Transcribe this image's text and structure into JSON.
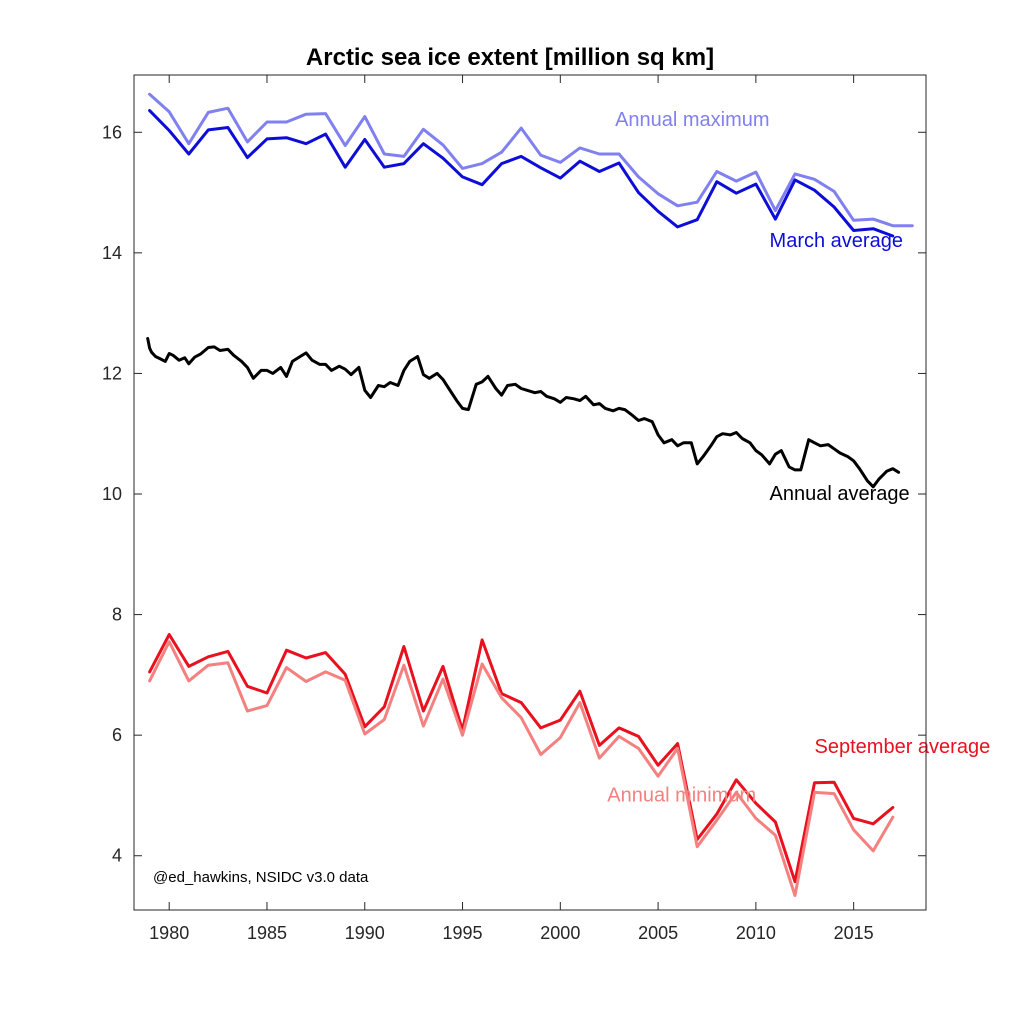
{
  "chart_data": {
    "type": "line",
    "title": "Arctic sea ice extent [million sq km]",
    "xlabel": "",
    "ylabel": "",
    "xlim": [
      1978.2,
      2018.7
    ],
    "ylim": [
      3.1,
      16.95
    ],
    "xticks": [
      1980,
      1985,
      1990,
      1995,
      2000,
      2005,
      2010,
      2015
    ],
    "yticks": [
      4,
      6,
      8,
      10,
      12,
      14,
      16
    ],
    "grid": false,
    "credit": "@ed_hawkins, NSIDC v3.0 data",
    "series": [
      {
        "name": "Annual maximum",
        "color": "#8080f0",
        "x": [
          1979,
          1980,
          1981,
          1982,
          1983,
          1984,
          1985,
          1986,
          1987,
          1988,
          1989,
          1990,
          1991,
          1992,
          1993,
          1994,
          1995,
          1996,
          1997,
          1998,
          1999,
          2000,
          2001,
          2002,
          2003,
          2004,
          2005,
          2006,
          2007,
          2008,
          2009,
          2010,
          2011,
          2012,
          2013,
          2014,
          2015,
          2016,
          2017,
          2018
        ],
        "values": [
          16.63,
          16.34,
          15.81,
          16.33,
          16.4,
          15.84,
          16.17,
          16.17,
          16.3,
          16.31,
          15.78,
          16.26,
          15.64,
          15.6,
          16.05,
          15.79,
          15.4,
          15.48,
          15.67,
          16.07,
          15.62,
          15.5,
          15.74,
          15.64,
          15.64,
          15.26,
          14.98,
          14.78,
          14.84,
          15.35,
          15.19,
          15.34,
          14.7,
          15.31,
          15.22,
          15.02,
          14.54,
          14.56,
          14.45,
          14.45
        ]
      },
      {
        "name": "March average",
        "color": "#0d0dd8",
        "x": [
          1979,
          1980,
          1981,
          1982,
          1983,
          1984,
          1985,
          1986,
          1987,
          1988,
          1989,
          1990,
          1991,
          1992,
          1993,
          1994,
          1995,
          1996,
          1997,
          1998,
          1999,
          2000,
          2001,
          2002,
          2003,
          2004,
          2005,
          2006,
          2007,
          2008,
          2009,
          2010,
          2011,
          2012,
          2013,
          2014,
          2015,
          2016,
          2017
        ],
        "values": [
          16.36,
          16.03,
          15.64,
          16.04,
          16.08,
          15.58,
          15.89,
          15.91,
          15.81,
          15.97,
          15.42,
          15.88,
          15.42,
          15.48,
          15.81,
          15.57,
          15.26,
          15.13,
          15.48,
          15.6,
          15.41,
          15.24,
          15.52,
          15.35,
          15.49,
          15.0,
          14.69,
          14.43,
          14.55,
          15.18,
          14.99,
          15.14,
          14.56,
          15.21,
          15.04,
          14.76,
          14.37,
          14.4,
          14.28
        ]
      },
      {
        "name": "Annual average",
        "color": "#000000",
        "x": [
          1978.9,
          1979,
          1979.1,
          1979.3,
          1979.5,
          1979.8,
          1980,
          1980.2,
          1980.5,
          1980.8,
          1981,
          1981.3,
          1981.6,
          1982,
          1982.3,
          1982.6,
          1983,
          1983.3,
          1983.7,
          1984,
          1984.3,
          1984.7,
          1985,
          1985.3,
          1985.7,
          1986,
          1986.3,
          1986.7,
          1987,
          1987.3,
          1987.7,
          1988,
          1988.3,
          1988.7,
          1989,
          1989.3,
          1989.7,
          1990,
          1990.3,
          1990.7,
          1991,
          1991.3,
          1991.7,
          1992,
          1992.3,
          1992.7,
          1993,
          1993.3,
          1993.7,
          1994,
          1994.3,
          1994.7,
          1995,
          1995.3,
          1995.7,
          1996,
          1996.3,
          1996.7,
          1997,
          1997.3,
          1997.7,
          1998,
          1998.3,
          1998.7,
          1999,
          1999.3,
          1999.7,
          2000,
          2000.3,
          2000.7,
          2001,
          2001.3,
          2001.7,
          2002,
          2002.3,
          2002.7,
          2003,
          2003.3,
          2003.7,
          2004,
          2004.3,
          2004.7,
          2005,
          2005.3,
          2005.7,
          2006,
          2006.3,
          2006.7,
          2007,
          2007.3,
          2007.7,
          2008,
          2008.3,
          2008.7,
          2009,
          2009.3,
          2009.7,
          2010,
          2010.3,
          2010.7,
          2011,
          2011.3,
          2011.7,
          2012,
          2012.3,
          2012.7,
          2013,
          2013.3,
          2013.7,
          2014,
          2014.3,
          2014.7,
          2015,
          2015.3,
          2015.7,
          2016,
          2016.3,
          2016.7,
          2017,
          2017.3
        ],
        "values": [
          12.58,
          12.42,
          12.35,
          12.28,
          12.25,
          12.2,
          12.33,
          12.3,
          12.22,
          12.26,
          12.16,
          12.27,
          12.32,
          12.43,
          12.44,
          12.38,
          12.4,
          12.3,
          12.2,
          12.1,
          11.92,
          12.05,
          12.05,
          12.0,
          12.1,
          11.95,
          12.2,
          12.28,
          12.34,
          12.22,
          12.15,
          12.15,
          12.05,
          12.12,
          12.07,
          11.98,
          12.1,
          11.72,
          11.6,
          11.8,
          11.78,
          11.85,
          11.8,
          12.05,
          12.2,
          12.28,
          11.98,
          11.92,
          12.0,
          11.9,
          11.75,
          11.55,
          11.42,
          11.4,
          11.82,
          11.86,
          11.95,
          11.75,
          11.64,
          11.8,
          11.82,
          11.75,
          11.72,
          11.68,
          11.7,
          11.62,
          11.58,
          11.52,
          11.6,
          11.58,
          11.55,
          11.62,
          11.48,
          11.5,
          11.42,
          11.38,
          11.42,
          11.4,
          11.3,
          11.22,
          11.25,
          11.2,
          10.98,
          10.85,
          10.9,
          10.8,
          10.85,
          10.85,
          10.5,
          10.62,
          10.8,
          10.95,
          11.0,
          10.98,
          11.02,
          10.92,
          10.85,
          10.72,
          10.65,
          10.5,
          10.66,
          10.72,
          10.45,
          10.4,
          10.4,
          10.9,
          10.85,
          10.8,
          10.82,
          10.75,
          10.68,
          10.62,
          10.55,
          10.42,
          10.22,
          10.12,
          10.25,
          10.38,
          10.42,
          10.36
        ]
      },
      {
        "name": "September average",
        "color": "#e8111d",
        "x": [
          1979,
          1980,
          1981,
          1982,
          1983,
          1984,
          1985,
          1986,
          1987,
          1988,
          1989,
          1990,
          1991,
          1992,
          1993,
          1994,
          1995,
          1996,
          1997,
          1998,
          1999,
          2000,
          2001,
          2002,
          2003,
          2004,
          2005,
          2006,
          2007,
          2008,
          2009,
          2010,
          2011,
          2012,
          2013,
          2014,
          2015,
          2016,
          2017
        ],
        "values": [
          7.05,
          7.67,
          7.14,
          7.3,
          7.39,
          6.81,
          6.7,
          7.41,
          7.28,
          7.37,
          7.01,
          6.14,
          6.47,
          7.47,
          6.4,
          7.14,
          6.08,
          7.58,
          6.69,
          6.54,
          6.12,
          6.25,
          6.73,
          5.83,
          6.12,
          5.98,
          5.5,
          5.86,
          4.27,
          4.69,
          5.26,
          4.87,
          4.56,
          3.57,
          5.21,
          5.22,
          4.62,
          4.53,
          4.8
        ]
      },
      {
        "name": "Annual minimum",
        "color": "#f58080",
        "x": [
          1979,
          1980,
          1981,
          1982,
          1983,
          1984,
          1985,
          1986,
          1987,
          1988,
          1989,
          1990,
          1991,
          1992,
          1993,
          1994,
          1995,
          1996,
          1997,
          1998,
          1999,
          2000,
          2001,
          2002,
          2003,
          2004,
          2005,
          2006,
          2007,
          2008,
          2009,
          2010,
          2011,
          2012,
          2013,
          2014,
          2015,
          2016,
          2017
        ],
        "values": [
          6.9,
          7.55,
          6.9,
          7.16,
          7.2,
          6.4,
          6.49,
          7.12,
          6.89,
          7.05,
          6.91,
          6.02,
          6.26,
          7.16,
          6.15,
          6.93,
          6.0,
          7.18,
          6.62,
          6.29,
          5.68,
          5.96,
          6.54,
          5.62,
          5.98,
          5.78,
          5.32,
          5.78,
          4.15,
          4.59,
          5.05,
          4.62,
          4.34,
          3.34,
          5.05,
          5.03,
          4.43,
          4.08,
          4.64
        ]
      }
    ],
    "annotations": [
      {
        "series": "Annual maximum",
        "text": "Annual maximum",
        "at_x": 2002.8,
        "at_y": 16.1,
        "color": "#8080f0"
      },
      {
        "series": "March average",
        "text": "March average",
        "at_x": 2010.7,
        "at_y": 14.1,
        "color": "#0d0dd8"
      },
      {
        "series": "Annual average",
        "text": "Annual average",
        "at_x": 2010.7,
        "at_y": 9.9,
        "color": "#000000"
      },
      {
        "series": "September average",
        "text": "September average",
        "at_x": 2013.0,
        "at_y": 5.7,
        "color": "#e8111d"
      },
      {
        "series": "Annual minimum",
        "text": "Annual minimum",
        "at_x": 2002.4,
        "at_y": 4.9,
        "color": "#f58080"
      }
    ]
  }
}
